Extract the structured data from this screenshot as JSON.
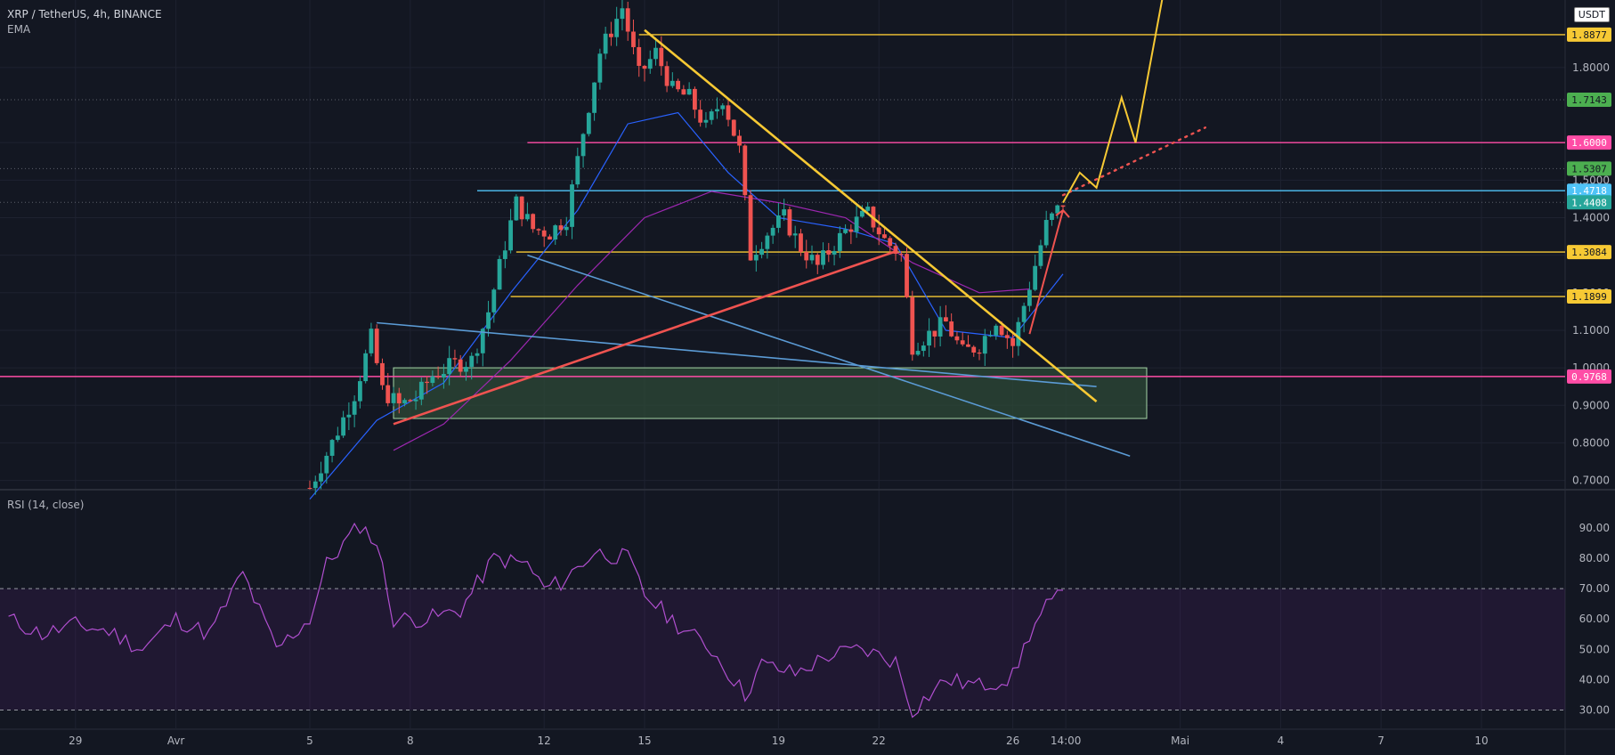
{
  "header": {
    "symbol": "XRP / TetherUS, 4h, BINANCE",
    "indicator": "EMA",
    "currency": "USDT",
    "rsi_label": "RSI (14, close)"
  },
  "colors": {
    "background": "#131722",
    "up": "#26a69a",
    "down": "#ef5350",
    "yellow": "#f7c934",
    "pink": "#ff4da6",
    "cyan": "#4fc3f7",
    "steelblue": "#5b9bd5",
    "rsi": "#b04fcf",
    "zone": "#2e4a37"
  },
  "chart_data": [
    {
      "type": "candlestick",
      "title": "XRP / TetherUS, 4h, BINANCE",
      "ylim": [
        0.68,
        1.98
      ],
      "y_ticks": [
        "1.8000",
        "1.6000",
        "1.5000",
        "1.4000",
        "1.3000",
        "1.2000",
        "1.1000",
        "1.0000",
        "0.9000",
        "0.8000",
        "0.7000"
      ],
      "x_ticks": [
        "29",
        "Avr",
        "5",
        "8",
        "12",
        "15",
        "19",
        "22",
        "26",
        "14:00",
        "Mai",
        "4",
        "7",
        "10"
      ],
      "x_tick_dates": [
        "2021-03-29",
        "2021-04-01",
        "2021-04-05",
        "2021-04-08",
        "2021-04-12",
        "2021-04-15",
        "2021-04-19",
        "2021-04-22",
        "2021-04-26",
        "2021-04-27T14:00",
        "2021-05-01",
        "2021-05-04",
        "2021-05-07",
        "2021-05-10"
      ],
      "price_levels": [
        {
          "value": 1.8877,
          "label": "1.8877",
          "color": "#f7c934"
        },
        {
          "value": 1.7143,
          "label": "1.7143",
          "color": "#4caf50"
        },
        {
          "value": 1.6,
          "label": "1.6000",
          "color": "#ff4da6"
        },
        {
          "value": 1.5307,
          "label": "1.5307",
          "color": "#4caf50"
        },
        {
          "value": 1.4718,
          "label": "1.4718",
          "color": "#4fc3f7"
        },
        {
          "value": 1.4408,
          "label": "1.4408",
          "color": "#26a69a"
        },
        {
          "value": 1.3084,
          "label": "1.3084",
          "color": "#f7c934"
        },
        {
          "value": 1.1899,
          "label": "1.1899",
          "color": "#f7c934"
        },
        {
          "value": 0.9768,
          "label": "0.9768",
          "color": "#ff4da6"
        }
      ],
      "ohlc_waypoints": [
        [
          "2021-04-05T00:00",
          0.68
        ],
        [
          "2021-04-05T16:00",
          0.8
        ],
        [
          "2021-04-06T08:00",
          0.93
        ],
        [
          "2021-04-06T20:00",
          1.08
        ],
        [
          "2021-04-07T04:00",
          0.94
        ],
        [
          "2021-04-07T16:00",
          0.9
        ],
        [
          "2021-04-08T04:00",
          0.92
        ],
        [
          "2021-04-08T16:00",
          0.98
        ],
        [
          "2021-04-09T08:00",
          1.01
        ],
        [
          "2021-04-09T20:00",
          1.02
        ],
        [
          "2021-04-10T08:00",
          1.15
        ],
        [
          "2021-04-10T20:00",
          1.33
        ],
        [
          "2021-04-11T04:00",
          1.44
        ],
        [
          "2021-04-11T16:00",
          1.37
        ],
        [
          "2021-04-12T04:00",
          1.36
        ],
        [
          "2021-04-12T16:00",
          1.4
        ],
        [
          "2021-04-13T04:00",
          1.63
        ],
        [
          "2021-04-13T16:00",
          1.84
        ],
        [
          "2021-04-14T08:00",
          1.96
        ],
        [
          "2021-04-14T20:00",
          1.78
        ],
        [
          "2021-04-15T08:00",
          1.84
        ],
        [
          "2021-04-15T20:00",
          1.74
        ],
        [
          "2021-04-16T08:00",
          1.72
        ],
        [
          "2021-04-16T20:00",
          1.64
        ],
        [
          "2021-04-17T08:00",
          1.72
        ],
        [
          "2021-04-17T20:00",
          1.58
        ],
        [
          "2021-04-18T04:00",
          1.3
        ],
        [
          "2021-04-18T16:00",
          1.36
        ],
        [
          "2021-04-19T04:00",
          1.4
        ],
        [
          "2021-04-19T16:00",
          1.32
        ],
        [
          "2021-04-20T04:00",
          1.27
        ],
        [
          "2021-04-20T16:00",
          1.33
        ],
        [
          "2021-04-21T04:00",
          1.38
        ],
        [
          "2021-04-21T16:00",
          1.41
        ],
        [
          "2021-04-22T04:00",
          1.34
        ],
        [
          "2021-04-22T16:00",
          1.3
        ],
        [
          "2021-04-23T00:00",
          1.06
        ],
        [
          "2021-04-23T12:00",
          1.09
        ],
        [
          "2021-04-24T00:00",
          1.12
        ],
        [
          "2021-04-24T12:00",
          1.04
        ],
        [
          "2021-04-25T00:00",
          1.06
        ],
        [
          "2021-04-25T12:00",
          1.13
        ],
        [
          "2021-04-26T00:00",
          1.06
        ],
        [
          "2021-04-26T12:00",
          1.22
        ],
        [
          "2021-04-27T00:00",
          1.38
        ],
        [
          "2021-04-27T12:00",
          1.44
        ]
      ],
      "ema_fast_waypoints": [
        [
          "2021-04-05T00:00",
          0.65
        ],
        [
          "2021-04-07T00:00",
          0.86
        ],
        [
          "2021-04-09T00:00",
          0.96
        ],
        [
          "2021-04-11T00:00",
          1.2
        ],
        [
          "2021-04-13T00:00",
          1.42
        ],
        [
          "2021-04-14T12:00",
          1.65
        ],
        [
          "2021-04-16T00:00",
          1.68
        ],
        [
          "2021-04-17T12:00",
          1.52
        ],
        [
          "2021-04-19T00:00",
          1.4
        ],
        [
          "2021-04-21T00:00",
          1.37
        ],
        [
          "2021-04-22T12:00",
          1.33
        ],
        [
          "2021-04-24T00:00",
          1.1
        ],
        [
          "2021-04-26T00:00",
          1.08
        ],
        [
          "2021-04-27T12:00",
          1.25
        ]
      ],
      "ema_slow_waypoints": [
        [
          "2021-04-07T12:00",
          0.78
        ],
        [
          "2021-04-09T00:00",
          0.85
        ],
        [
          "2021-04-11T00:00",
          1.02
        ],
        [
          "2021-04-13T00:00",
          1.22
        ],
        [
          "2021-04-15T00:00",
          1.4
        ],
        [
          "2021-04-17T00:00",
          1.47
        ],
        [
          "2021-04-19T00:00",
          1.44
        ],
        [
          "2021-04-21T00:00",
          1.4
        ],
        [
          "2021-04-23T00:00",
          1.28
        ],
        [
          "2021-04-25T00:00",
          1.2
        ],
        [
          "2021-04-26T12:00",
          1.21
        ]
      ],
      "drawings": {
        "zone": {
          "from": "2021-04-07T12:00",
          "to": "2021-04-30T00:00",
          "top": 1.0,
          "bottom": 0.865
        },
        "descending_trendline": {
          "points": [
            [
              "2021-04-15T00:00",
              1.9
            ],
            [
              "2021-04-28T12:00",
              0.91
            ]
          ],
          "color": "#f7c934"
        },
        "rising_trendline": {
          "points": [
            [
              "2021-04-07T12:00",
              0.85
            ],
            [
              "2021-04-22T12:00",
              1.31
            ]
          ],
          "color": "#ef5350"
        },
        "upper_wedge_line": {
          "points": [
            [
              "2021-04-07T00:00",
              1.12
            ],
            [
              "2021-04-28T12:00",
              0.95
            ]
          ],
          "color": "#5b9bd5"
        },
        "lower_wedge_line": {
          "points": [
            [
              "2021-04-11T12:00",
              1.3
            ],
            [
              "2021-04-29T12:00",
              0.765
            ]
          ],
          "color": "#5b9bd5"
        },
        "projection": {
          "points": [
            [
              "2021-04-27T12:00",
              1.44
            ],
            [
              "2021-04-28T00:00",
              1.52
            ],
            [
              "2021-04-28T12:00",
              1.48
            ],
            [
              "2021-04-29T06:00",
              1.72
            ],
            [
              "2021-04-29T16:00",
              1.6
            ],
            [
              "2021-04-30T12:00",
              2.0
            ]
          ],
          "color": "#f7c934"
        },
        "dotted_line": {
          "points": [
            [
              "2021-04-27T12:00",
              1.46
            ],
            [
              "2021-05-01T18:00",
              1.64
            ]
          ],
          "color": "#ef5350"
        }
      }
    },
    {
      "type": "line",
      "title": "RSI (14, close)",
      "ylim": [
        24,
        102
      ],
      "y_ticks": [
        "90.00",
        "80.00",
        "70.00",
        "60.00",
        "50.00",
        "40.00",
        "30.00"
      ],
      "bands": [
        70,
        30
      ],
      "waypoints": [
        [
          "2021-03-27T00:00",
          60
        ],
        [
          "2021-03-28T00:00",
          55
        ],
        [
          "2021-03-29T00:00",
          58
        ],
        [
          "2021-03-30T00:00",
          56
        ],
        [
          "2021-03-31T00:00",
          50
        ],
        [
          "2021-04-01T00:00",
          60
        ],
        [
          "2021-04-02T00:00",
          55
        ],
        [
          "2021-04-03T00:00",
          75
        ],
        [
          "2021-04-04T00:00",
          50
        ],
        [
          "2021-04-05T00:00",
          60
        ],
        [
          "2021-04-05T12:00",
          78
        ],
        [
          "2021-04-06T12:00",
          91
        ],
        [
          "2021-04-07T00:00",
          85
        ],
        [
          "2021-04-07T12:00",
          60
        ],
        [
          "2021-04-08T12:00",
          60
        ],
        [
          "2021-04-09T12:00",
          63
        ],
        [
          "2021-04-10T12:00",
          80
        ],
        [
          "2021-04-11T12:00",
          78
        ],
        [
          "2021-04-12T00:00",
          70
        ],
        [
          "2021-04-12T12:00",
          72
        ],
        [
          "2021-04-13T12:00",
          82
        ],
        [
          "2021-04-14T12:00",
          80
        ],
        [
          "2021-04-15T00:00",
          68
        ],
        [
          "2021-04-16T00:00",
          58
        ],
        [
          "2021-04-17T00:00",
          50
        ],
        [
          "2021-04-18T00:00",
          35
        ],
        [
          "2021-04-18T12:00",
          45
        ],
        [
          "2021-04-19T12:00",
          42
        ],
        [
          "2021-04-20T12:00",
          48
        ],
        [
          "2021-04-21T12:00",
          50
        ],
        [
          "2021-04-22T12:00",
          46
        ],
        [
          "2021-04-23T00:00",
          30
        ],
        [
          "2021-04-24T00:00",
          40
        ],
        [
          "2021-04-25T00:00",
          38
        ],
        [
          "2021-04-26T00:00",
          41
        ],
        [
          "2021-04-26T12:00",
          55
        ],
        [
          "2021-04-27T00:00",
          64
        ],
        [
          "2021-04-27T12:00",
          68
        ]
      ]
    }
  ]
}
